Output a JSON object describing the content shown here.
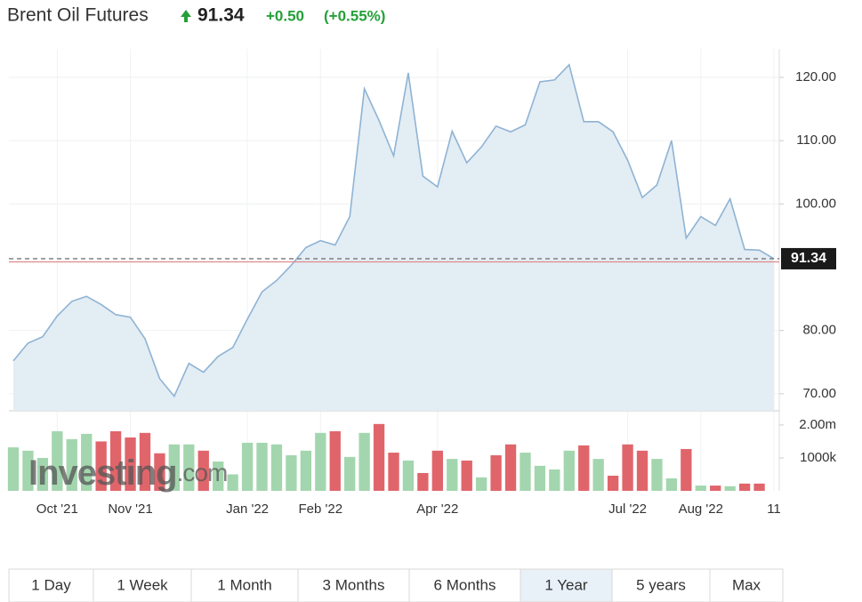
{
  "header": {
    "title": "Brent Oil Futures",
    "price": "91.34",
    "change": "+0.50",
    "change_pct": "(+0.55%)"
  },
  "chart_data": {
    "type": "area",
    "categories": [
      null,
      null,
      null,
      "Oct '21",
      null,
      null,
      null,
      null,
      "Nov '21",
      null,
      null,
      null,
      null,
      null,
      null,
      null,
      "Jan '22",
      null,
      null,
      null,
      null,
      "Feb '22",
      null,
      null,
      null,
      null,
      null,
      null,
      null,
      "Apr '22",
      null,
      null,
      null,
      null,
      null,
      null,
      null,
      null,
      null,
      null,
      null,
      null,
      "Jul '22",
      null,
      null,
      null,
      null,
      "Aug '22",
      null,
      null,
      null,
      null,
      "11"
    ],
    "series": [
      {
        "name": "Price",
        "color": "#8fb3d4",
        "fill": "#e3edf4",
        "values": [
          75.2,
          78.0,
          79.0,
          82.3,
          84.6,
          85.4,
          84.1,
          82.5,
          82.1,
          78.7,
          72.4,
          69.6,
          74.8,
          73.4,
          75.9,
          77.3,
          81.8,
          86.1,
          87.9,
          90.3,
          93.1,
          94.2,
          93.5,
          98.0,
          118.2,
          113.2,
          107.6,
          120.7,
          104.4,
          102.7,
          111.5,
          106.5,
          109.0,
          112.3,
          111.4,
          112.5,
          119.3,
          119.6,
          122.0,
          113.0,
          113.0,
          111.4,
          106.9,
          101.0,
          103.0,
          110.0,
          94.6,
          98.0,
          96.6,
          100.8,
          92.8,
          92.7,
          91.34
        ]
      },
      {
        "name": "Volume",
        "type": "bar",
        "axis": "y2",
        "values": [
          1320000,
          1220000,
          1000000,
          1810000,
          1570000,
          1730000,
          1500000,
          1810000,
          1620000,
          1760000,
          1140000,
          1410000,
          1410000,
          1220000,
          890000,
          500000,
          1460000,
          1460000,
          1410000,
          1080000,
          1220000,
          1760000,
          1810000,
          1030000,
          1760000,
          2030000,
          1160000,
          920000,
          540000,
          1220000,
          970000,
          920000,
          410000,
          1080000,
          1410000,
          1160000,
          760000,
          650000,
          1220000,
          1380000,
          970000,
          460000,
          1410000,
          1220000,
          970000,
          380000,
          1270000,
          160000,
          160000,
          140000,
          220000,
          220000,
          null
        ],
        "colors": [
          "#a3d6ae",
          "#a3d6ae",
          "#a3d6ae",
          "#a3d6ae",
          "#a3d6ae",
          "#a3d6ae",
          "#e0656b",
          "#e0656b",
          "#e0656b",
          "#e0656b",
          "#e0656b",
          "#a3d6ae",
          "#a3d6ae",
          "#e0656b",
          "#a3d6ae",
          "#a3d6ae",
          "#a3d6ae",
          "#a3d6ae",
          "#a3d6ae",
          "#a3d6ae",
          "#a3d6ae",
          "#a3d6ae",
          "#e0656b",
          "#a3d6ae",
          "#a3d6ae",
          "#e0656b",
          "#e0656b",
          "#a3d6ae",
          "#e0656b",
          "#e0656b",
          "#a3d6ae",
          "#e0656b",
          "#a3d6ae",
          "#e0656b",
          "#e0656b",
          "#a3d6ae",
          "#a3d6ae",
          "#a3d6ae",
          "#a3d6ae",
          "#e0656b",
          "#a3d6ae",
          "#e0656b",
          "#e0656b",
          "#e0656b",
          "#a3d6ae",
          "#a3d6ae",
          "#e0656b",
          "#a3d6ae",
          "#e0656b",
          "#a3d6ae",
          "#e0656b",
          "#e0656b",
          "#a3d6ae"
        ]
      }
    ],
    "prev_close": 90.84,
    "ylim": [
      67.3,
      124.5
    ],
    "yticks": [
      {
        "value": 70,
        "label": "70.00"
      },
      {
        "value": 80,
        "label": "80.00"
      },
      {
        "value": 100,
        "label": "100.00"
      },
      {
        "value": 110,
        "label": "110.00"
      },
      {
        "value": 120,
        "label": "120.00"
      }
    ],
    "y2lim": [
      0,
      2430000
    ],
    "y2ticks": [
      {
        "value": 1000000,
        "label": "1000k"
      },
      {
        "value": 2000000,
        "label": "2.00m"
      }
    ],
    "grid": true,
    "watermark": "Investing",
    "watermark_suffix": ".com"
  },
  "ranges": [
    "1 Day",
    "1 Week",
    "1 Month",
    "3 Months",
    "6 Months",
    "1 Year",
    "5 years",
    "Max"
  ],
  "selected_range": 5
}
